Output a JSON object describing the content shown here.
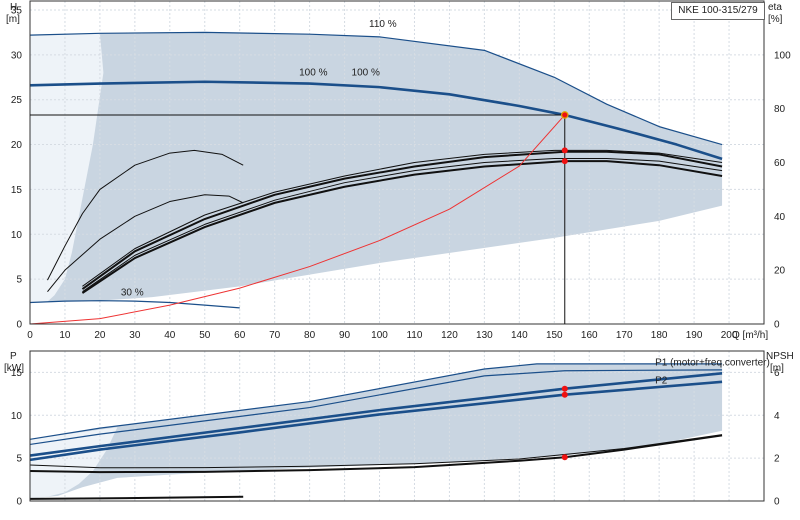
{
  "title": "NKE 100-315/279",
  "colors": {
    "envelope": "#c9d5e1",
    "envelope_light": "#eef3f8",
    "blue": "#1b4f8a",
    "black": "#111111",
    "system": "#ee3333",
    "duty": "#ee1111",
    "duty_outline": "#e0a400"
  },
  "chart_data": [
    {
      "type": "line",
      "id": "upper",
      "xlabel": "Q [m³/h]",
      "ylabel": "H\n[m]",
      "y2label": "eta\n[%]",
      "xlim": [
        0,
        210
      ],
      "ylim": [
        0,
        36
      ],
      "y2lim": [
        0,
        120
      ],
      "xticks": [
        0,
        10,
        20,
        30,
        40,
        50,
        60,
        70,
        80,
        90,
        100,
        110,
        120,
        130,
        140,
        150,
        160,
        170,
        180,
        190,
        200
      ],
      "yticks": [
        0,
        5,
        10,
        15,
        20,
        25,
        30,
        35
      ],
      "y2ticks": [
        0,
        20,
        40,
        60,
        80,
        100
      ],
      "annotations": [
        {
          "text": "110 %",
          "x": 97,
          "y": 33.1
        },
        {
          "text": "100 %",
          "x": 77,
          "y": 27.7
        },
        {
          "text": "100 %",
          "x": 92,
          "y": 27.7
        },
        {
          "text": "30 %",
          "x": 26,
          "y": 3.2
        }
      ],
      "envelope_outer": {
        "x": [
          0,
          5,
          20,
          50,
          80,
          100,
          130,
          150,
          165,
          180,
          198,
          198,
          180,
          150,
          100,
          60,
          35,
          20,
          5,
          0
        ],
        "y": [
          32.2,
          32.3,
          32.4,
          32.5,
          32.3,
          32.0,
          30.5,
          27.5,
          24.5,
          22.0,
          20.0,
          13.2,
          11.5,
          9.6,
          6.8,
          4.2,
          3.0,
          2.6,
          2.5,
          2.4
        ]
      },
      "envelope_light_region": {
        "x": [
          0,
          20,
          21,
          18,
          14,
          12,
          10,
          7,
          5,
          0
        ],
        "y": [
          32.2,
          32.4,
          28.0,
          20.0,
          12.0,
          8.0,
          5.0,
          3.2,
          2.5,
          2.4
        ]
      },
      "series": [
        {
          "name": "110 %",
          "style": "blue-thin",
          "x": [
            0,
            20,
            50,
            80,
            100,
            130,
            150,
            165,
            180,
            198
          ],
          "y": [
            32.2,
            32.4,
            32.5,
            32.3,
            32.0,
            30.5,
            27.5,
            24.5,
            22.0,
            20.0
          ]
        },
        {
          "name": "100 %",
          "style": "blue-thick",
          "x": [
            0,
            20,
            50,
            80,
            100,
            120,
            140,
            153,
            170,
            185,
            198
          ],
          "y": [
            26.6,
            26.8,
            27.0,
            26.8,
            26.4,
            25.6,
            24.3,
            23.3,
            21.6,
            20.0,
            18.4
          ]
        },
        {
          "name": "30 %",
          "style": "blue-thin",
          "x": [
            0,
            10,
            20,
            30,
            40,
            50,
            60
          ],
          "y": [
            2.4,
            2.55,
            2.6,
            2.55,
            2.4,
            2.1,
            1.8
          ]
        },
        {
          "name": "",
          "style": "black-thin",
          "axis": "y2",
          "x": [
            5,
            10,
            15,
            20,
            30,
            40,
            47,
            55,
            61
          ],
          "y": [
            16.3,
            29.0,
            41.0,
            50.0,
            59.0,
            63.5,
            64.5,
            63.0,
            59.0
          ]
        },
        {
          "name": "",
          "style": "black-thin",
          "axis": "y2",
          "x": [
            5,
            10,
            20,
            30,
            40,
            50,
            57,
            61
          ],
          "y": [
            12.0,
            20.0,
            31.5,
            40.0,
            45.5,
            48.0,
            47.5,
            45.0
          ]
        },
        {
          "name": "",
          "style": "black-thin",
          "axis": "y2",
          "x": [
            15,
            30,
            50,
            70,
            90,
            110,
            130,
            150,
            165,
            180,
            198
          ],
          "y": [
            14.0,
            28.0,
            40.5,
            49.0,
            55.0,
            60.0,
            63.0,
            64.5,
            64.5,
            63.5,
            60.0
          ]
        },
        {
          "name": "",
          "style": "black-thick",
          "axis": "y2",
          "x": [
            15,
            30,
            50,
            70,
            90,
            110,
            130,
            153,
            165,
            180,
            198
          ],
          "y": [
            13.0,
            27.0,
            39.0,
            48.0,
            54.0,
            58.5,
            62.0,
            64.0,
            64.0,
            63.0,
            58.5
          ]
        },
        {
          "name": "",
          "style": "black-thin",
          "axis": "y2",
          "x": [
            15,
            30,
            50,
            70,
            90,
            110,
            130,
            150,
            165,
            180,
            198
          ],
          "y": [
            12.0,
            25.5,
            37.0,
            46.0,
            52.5,
            57.0,
            60.0,
            61.5,
            61.5,
            60.5,
            57.0
          ]
        },
        {
          "name": "",
          "style": "black-thick",
          "axis": "y2",
          "x": [
            15,
            30,
            50,
            70,
            90,
            110,
            130,
            153,
            165,
            180,
            198
          ],
          "y": [
            11.5,
            24.5,
            36.0,
            45.0,
            51.0,
            55.5,
            58.5,
            60.5,
            60.5,
            59.0,
            55.0
          ]
        },
        {
          "name": "",
          "style": "system",
          "x": [
            0,
            20,
            40,
            60,
            80,
            100,
            120,
            140,
            153
          ],
          "y": [
            0,
            0.6,
            2.1,
            4.0,
            6.4,
            9.3,
            12.8,
            17.6,
            23.3
          ]
        }
      ],
      "duty_point": {
        "x": 153,
        "H": 23.3,
        "eta_points": [
          64.5,
          60.5
        ]
      },
      "reference_lines": {
        "h_line_y": 23.3,
        "v_line_x": 153
      }
    },
    {
      "type": "line",
      "id": "lower",
      "xlabel": "",
      "ylabel": "P\n[kW]",
      "y2label": "NPSH\n[m]",
      "xlim": [
        0,
        210
      ],
      "ylim": [
        0,
        17.5
      ],
      "y2lim": [
        0,
        7
      ],
      "yticks": [
        0,
        5,
        10,
        15
      ],
      "y2ticks": [
        0,
        2,
        4,
        6
      ],
      "legend_labels": [
        {
          "text": "P1 (motor+freq.converter)",
          "x": 196,
          "y": 15.8
        },
        {
          "text": "P2",
          "x": 196,
          "y": 13.7
        }
      ],
      "envelope_outer": {
        "x": [
          0,
          20,
          80,
          130,
          145,
          198,
          198,
          175,
          150,
          120,
          80,
          45,
          25,
          15,
          8,
          0
        ],
        "y": [
          7.2,
          8.5,
          11.6,
          15.4,
          16.0,
          16.0,
          8.2,
          6.2,
          5.2,
          4.5,
          3.9,
          3.2,
          2.7,
          1.6,
          0.6,
          0.3
        ]
      },
      "envelope_light_region": {
        "x": [
          0,
          25,
          22,
          18,
          14,
          10,
          5,
          0
        ],
        "y": [
          7.2,
          8.6,
          6.0,
          3.5,
          2.0,
          1.0,
          0.5,
          0.3
        ]
      },
      "series": [
        {
          "name": "",
          "style": "blue-thin",
          "x": [
            0,
            20,
            80,
            130,
            145,
            198
          ],
          "y": [
            7.2,
            8.5,
            11.6,
            15.4,
            16.0,
            16.0
          ]
        },
        {
          "name": "",
          "style": "blue-thin",
          "x": [
            0,
            20,
            80,
            130,
            153,
            198
          ],
          "y": [
            6.6,
            7.8,
            10.9,
            14.6,
            15.2,
            15.3
          ]
        },
        {
          "name": "",
          "style": "blue-thick",
          "x": [
            0,
            20,
            60,
            100,
            153,
            198
          ],
          "y": [
            5.3,
            6.4,
            8.5,
            10.6,
            13.1,
            14.9
          ]
        },
        {
          "name": "",
          "style": "blue-thick",
          "x": [
            0,
            20,
            60,
            100,
            153,
            198
          ],
          "y": [
            4.8,
            6.0,
            8.0,
            10.1,
            12.4,
            13.9
          ]
        },
        {
          "name": "",
          "style": "black-thin",
          "axis": "y2",
          "x": [
            0,
            20,
            50,
            80,
            110,
            140,
            170,
            198
          ],
          "y": [
            1.68,
            1.55,
            1.56,
            1.62,
            1.74,
            1.96,
            2.45,
            3.1
          ]
        },
        {
          "name": "",
          "style": "black-thick",
          "axis": "y2",
          "x": [
            0,
            20,
            50,
            80,
            110,
            140,
            153,
            170,
            198
          ],
          "y": [
            1.4,
            1.35,
            1.36,
            1.44,
            1.58,
            1.88,
            2.04,
            2.4,
            3.06
          ]
        },
        {
          "name": "",
          "style": "black-thick",
          "x": [
            0,
            20,
            40,
            61
          ],
          "y": [
            0.25,
            0.3,
            0.4,
            0.5
          ]
        }
      ],
      "duty_points": [
        {
          "x": 153,
          "y": 13.1
        },
        {
          "x": 153,
          "y": 12.4
        },
        {
          "x": 153,
          "y2": 2.04
        }
      ]
    }
  ]
}
